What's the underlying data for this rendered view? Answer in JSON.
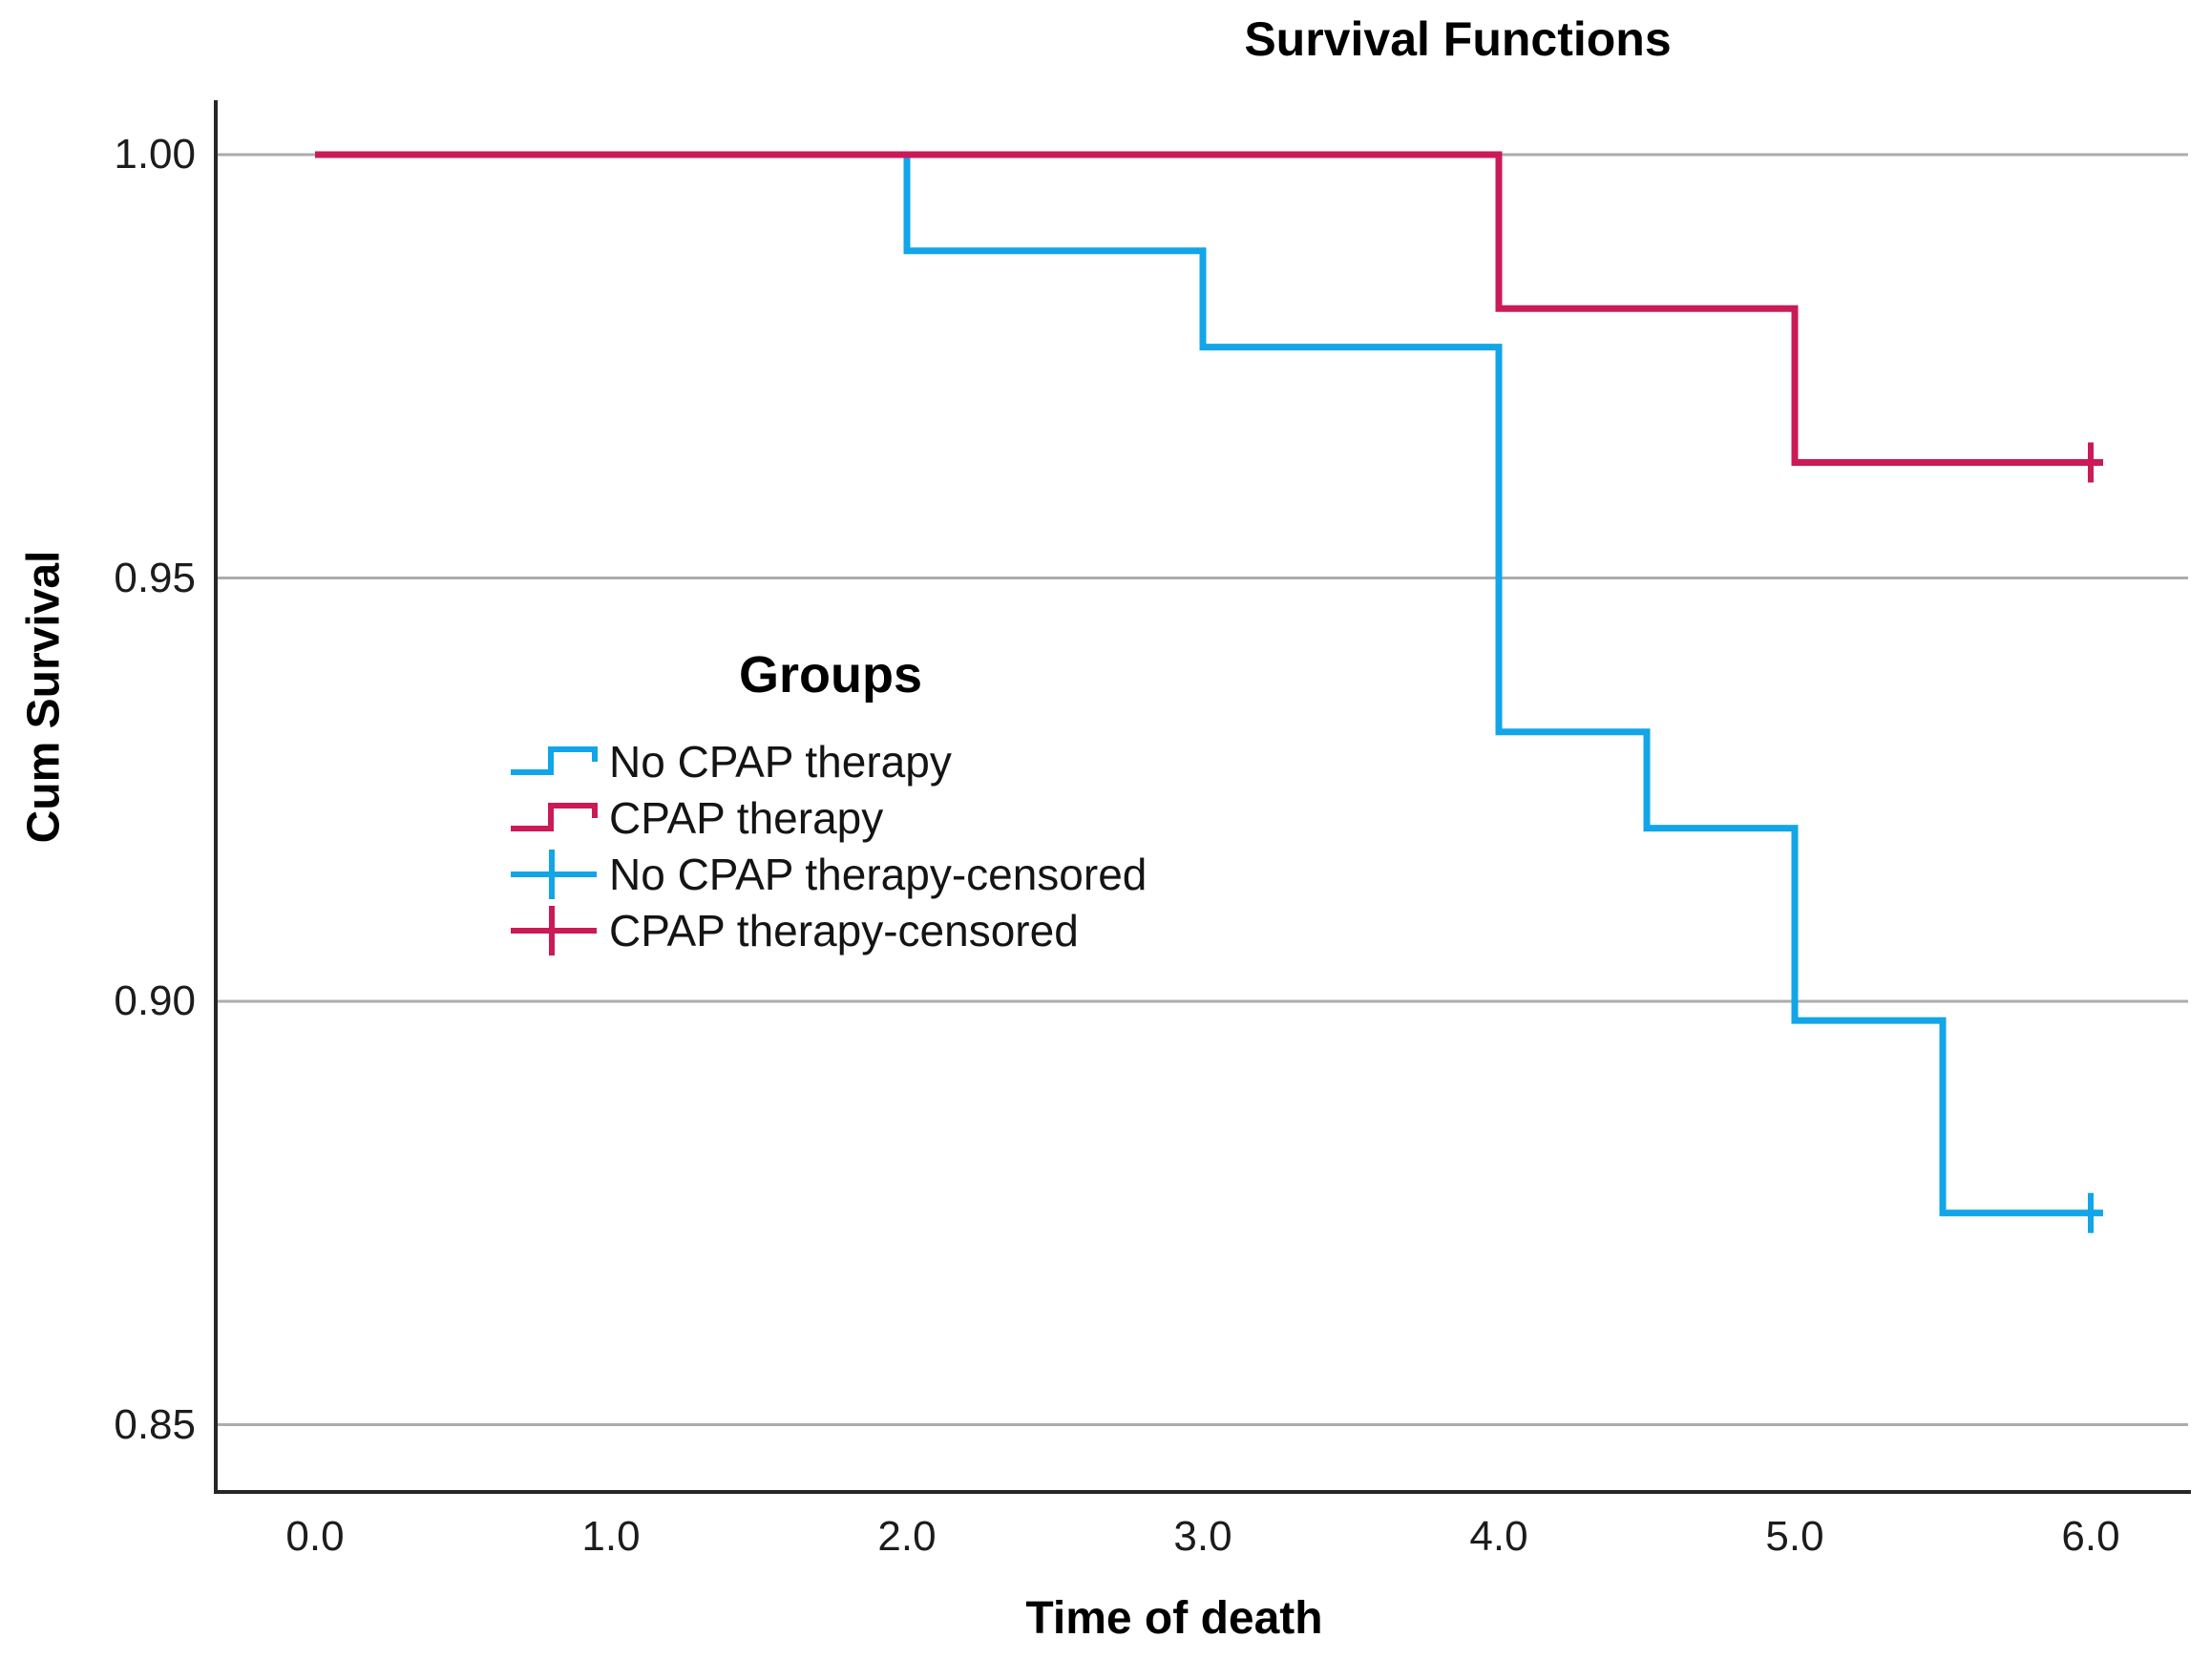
{
  "title": "Survival Functions",
  "x_axis": {
    "title": "Time of death",
    "ticks": [
      {
        "label": "0.0",
        "value": 0
      },
      {
        "label": "1.0",
        "value": 1
      },
      {
        "label": "2.0",
        "value": 2
      },
      {
        "label": "3.0",
        "value": 3
      },
      {
        "label": "4.0",
        "value": 4
      },
      {
        "label": "5.0",
        "value": 5
      },
      {
        "label": "6.0",
        "value": 6
      }
    ]
  },
  "y_axis": {
    "title": "Cum Survival",
    "ticks": [
      {
        "label": "1.00",
        "value": 1.0
      },
      {
        "label": "0.95",
        "value": 0.95
      },
      {
        "label": "0.90",
        "value": 0.9
      },
      {
        "label": "0.85",
        "value": 0.85
      }
    ]
  },
  "legend": {
    "title": "Groups",
    "items": [
      {
        "label": "No CPAP therapy",
        "color": "#12A5E8",
        "glyph": "step"
      },
      {
        "label": "CPAP therapy",
        "color": "#CB1A57",
        "glyph": "step"
      },
      {
        "label": "No CPAP therapy-censored",
        "color": "#12A5E8",
        "glyph": "plus"
      },
      {
        "label": "CPAP therapy-censored",
        "color": "#CB1A57",
        "glyph": "plus"
      }
    ]
  },
  "colors": {
    "no_cpap": "#12A5E8",
    "cpap": "#CB1A57",
    "gridline": "#ACACAC",
    "axis": "#262626",
    "background": "#FFFFFF"
  },
  "chart_data": {
    "type": "line",
    "subtype": "kaplan-meier-step",
    "title": "Survival Functions",
    "xlabel": "Time of death",
    "ylabel": "Cum Survival",
    "xlim": [
      -0.34,
      6.33
    ],
    "ylim": [
      0.842,
      1.006
    ],
    "grid": "horizontal",
    "legend_position": "inside-upper-left",
    "series": [
      {
        "name": "No CPAP therapy",
        "color": "#12A5E8",
        "steps": [
          {
            "x": 0.0,
            "survival": 1.0
          },
          {
            "x": 2.0,
            "survival": 0.98864
          },
          {
            "x": 3.0,
            "survival": 0.97727
          },
          {
            "x": 4.0,
            "survival": 0.93182
          },
          {
            "x": 4.5,
            "survival": 0.92045
          },
          {
            "x": 5.0,
            "survival": 0.89773
          },
          {
            "x": 5.5,
            "survival": 0.875
          }
        ],
        "end_x": 6.0,
        "censored": [
          {
            "x": 6.0,
            "survival": 0.875
          }
        ]
      },
      {
        "name": "CPAP therapy",
        "color": "#CB1A57",
        "steps": [
          {
            "x": 0.0,
            "survival": 1.0
          },
          {
            "x": 4.0,
            "survival": 0.98182
          },
          {
            "x": 5.0,
            "survival": 0.96364
          }
        ],
        "end_x": 6.0,
        "censored": [
          {
            "x": 6.0,
            "survival": 0.96364
          }
        ]
      }
    ]
  }
}
